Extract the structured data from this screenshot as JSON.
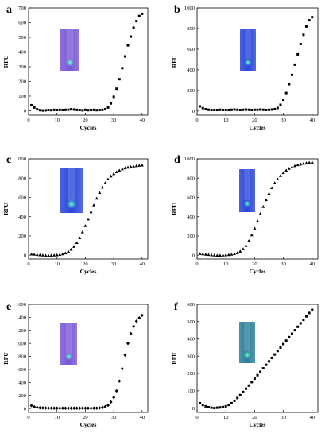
{
  "chart_data": [
    {
      "panel": "a",
      "type": "scatter",
      "marker": "square",
      "xlabel": "Cycles",
      "ylabel": "RFU",
      "xlim": [
        0,
        42
      ],
      "ylim": [
        -30,
        700
      ],
      "xticks": [
        0,
        10,
        20,
        30,
        40
      ],
      "yticks": [
        0,
        100,
        200,
        300,
        400,
        500,
        600,
        700
      ],
      "tube": "violet",
      "x": [
        1,
        2,
        3,
        4,
        5,
        6,
        7,
        8,
        9,
        10,
        11,
        12,
        13,
        14,
        15,
        16,
        17,
        18,
        19,
        20,
        21,
        22,
        23,
        24,
        25,
        26,
        27,
        28,
        29,
        30,
        31,
        32,
        33,
        34,
        35,
        36,
        37,
        38,
        39,
        40
      ],
      "y": [
        38,
        22,
        10,
        4,
        2,
        3,
        5,
        4,
        6,
        5,
        6,
        5,
        6,
        7,
        10,
        8,
        6,
        5,
        3,
        6,
        4,
        5,
        6,
        4,
        5,
        6,
        10,
        22,
        50,
        95,
        150,
        215,
        290,
        370,
        445,
        505,
        565,
        610,
        645,
        660
      ]
    },
    {
      "panel": "b",
      "type": "scatter",
      "marker": "square",
      "xlabel": "Cycles",
      "ylabel": "RFU",
      "xlim": [
        0,
        42
      ],
      "ylim": [
        -40,
        1000
      ],
      "xticks": [
        0,
        10,
        20,
        30,
        40
      ],
      "yticks": [
        0,
        200,
        400,
        600,
        800,
        1000
      ],
      "tube": "blue",
      "x": [
        1,
        2,
        3,
        4,
        5,
        6,
        7,
        8,
        9,
        10,
        11,
        12,
        13,
        14,
        15,
        16,
        17,
        18,
        19,
        20,
        21,
        22,
        23,
        24,
        25,
        26,
        27,
        28,
        29,
        30,
        31,
        32,
        33,
        34,
        35,
        36,
        37,
        38,
        39,
        40
      ],
      "y": [
        45,
        28,
        18,
        12,
        10,
        10,
        10,
        12,
        10,
        10,
        10,
        12,
        14,
        12,
        10,
        12,
        14,
        12,
        10,
        12,
        12,
        14,
        12,
        10,
        12,
        14,
        18,
        30,
        60,
        110,
        175,
        260,
        350,
        450,
        550,
        650,
        740,
        820,
        880,
        910
      ]
    },
    {
      "panel": "c",
      "type": "scatter",
      "marker": "triangle",
      "xlabel": "Cycles",
      "ylabel": "RFU",
      "xlim": [
        0,
        42
      ],
      "ylim": [
        -40,
        1000
      ],
      "xticks": [
        0,
        10,
        20,
        30,
        40
      ],
      "yticks": [
        0,
        200,
        400,
        600,
        800,
        1000
      ],
      "tube": "blue",
      "x": [
        1,
        2,
        3,
        4,
        5,
        6,
        7,
        8,
        9,
        10,
        11,
        12,
        13,
        14,
        15,
        16,
        17,
        18,
        19,
        20,
        21,
        22,
        23,
        24,
        25,
        26,
        27,
        28,
        29,
        30,
        31,
        32,
        33,
        34,
        35,
        36,
        37,
        38,
        39,
        40
      ],
      "y": [
        10,
        8,
        5,
        2,
        0,
        -2,
        -3,
        -2,
        0,
        2,
        6,
        12,
        22,
        38,
        60,
        90,
        130,
        180,
        240,
        305,
        375,
        450,
        520,
        590,
        650,
        705,
        750,
        790,
        820,
        845,
        865,
        880,
        895,
        905,
        912,
        918,
        924,
        928,
        932,
        935
      ]
    },
    {
      "panel": "d",
      "type": "scatter",
      "marker": "triangle",
      "xlabel": "Cycles",
      "ylabel": "RFU",
      "xlim": [
        0,
        42
      ],
      "ylim": [
        -40,
        1000
      ],
      "xticks": [
        0,
        10,
        20,
        30,
        40
      ],
      "yticks": [
        0,
        200,
        400,
        600,
        800,
        1000
      ],
      "tube": "blue",
      "x": [
        1,
        2,
        3,
        4,
        5,
        6,
        7,
        8,
        9,
        10,
        11,
        12,
        13,
        14,
        15,
        16,
        17,
        18,
        19,
        20,
        21,
        22,
        23,
        24,
        25,
        26,
        27,
        28,
        29,
        30,
        31,
        32,
        33,
        34,
        35,
        36,
        37,
        38,
        39,
        40
      ],
      "y": [
        15,
        12,
        8,
        5,
        2,
        0,
        -2,
        -2,
        0,
        2,
        4,
        8,
        14,
        24,
        40,
        65,
        100,
        150,
        210,
        280,
        355,
        430,
        505,
        575,
        640,
        700,
        750,
        790,
        825,
        855,
        880,
        900,
        915,
        928,
        938,
        945,
        952,
        958,
        962,
        965
      ]
    },
    {
      "panel": "e",
      "type": "scatter",
      "marker": "diamond",
      "xlabel": "Cycles",
      "ylabel": "RFU",
      "xlim": [
        0,
        42
      ],
      "ylim": [
        -60,
        1600
      ],
      "xticks": [
        0,
        10,
        20,
        30,
        40
      ],
      "yticks": [
        0,
        200,
        400,
        600,
        800,
        1000,
        1200,
        1400,
        1600
      ],
      "tube": "violet",
      "x": [
        1,
        2,
        3,
        4,
        5,
        6,
        7,
        8,
        9,
        10,
        11,
        12,
        13,
        14,
        15,
        16,
        17,
        18,
        19,
        20,
        21,
        22,
        23,
        24,
        25,
        26,
        27,
        28,
        29,
        30,
        31,
        32,
        33,
        34,
        35,
        36,
        37,
        38,
        39,
        40
      ],
      "y": [
        45,
        25,
        15,
        10,
        8,
        6,
        5,
        5,
        4,
        4,
        4,
        4,
        4,
        4,
        4,
        4,
        4,
        4,
        4,
        4,
        4,
        4,
        4,
        5,
        8,
        15,
        28,
        50,
        100,
        170,
        270,
        420,
        610,
        820,
        1000,
        1150,
        1260,
        1340,
        1390,
        1430
      ]
    },
    {
      "panel": "f",
      "type": "scatter",
      "marker": "square",
      "xlabel": "Cycles",
      "ylabel": "RFU",
      "xlim": [
        0,
        42
      ],
      "ylim": [
        -25,
        600
      ],
      "xticks": [
        0,
        10,
        20,
        30,
        40
      ],
      "yticks": [
        0,
        100,
        200,
        300,
        400,
        500,
        600
      ],
      "tube": "teal",
      "x": [
        1,
        2,
        3,
        4,
        5,
        6,
        7,
        8,
        9,
        10,
        11,
        12,
        13,
        14,
        15,
        16,
        17,
        18,
        19,
        20,
        21,
        22,
        23,
        24,
        25,
        26,
        27,
        28,
        29,
        30,
        31,
        32,
        33,
        34,
        35,
        36,
        37,
        38,
        39,
        40
      ],
      "y": [
        28,
        18,
        10,
        5,
        2,
        0,
        2,
        4,
        6,
        10,
        18,
        28,
        42,
        58,
        75,
        93,
        112,
        130,
        150,
        170,
        190,
        210,
        230,
        250,
        270,
        290,
        310,
        330,
        350,
        370,
        390,
        410,
        430,
        450,
        470,
        490,
        510,
        530,
        550,
        568
      ]
    }
  ],
  "colors": {
    "marker": "#000000",
    "axis": "#000000",
    "violet_tube": "#7a56d6",
    "blue_tube": "#2a46d8",
    "teal_tube": "#2a7f9a",
    "glow": "#66ffcc"
  }
}
